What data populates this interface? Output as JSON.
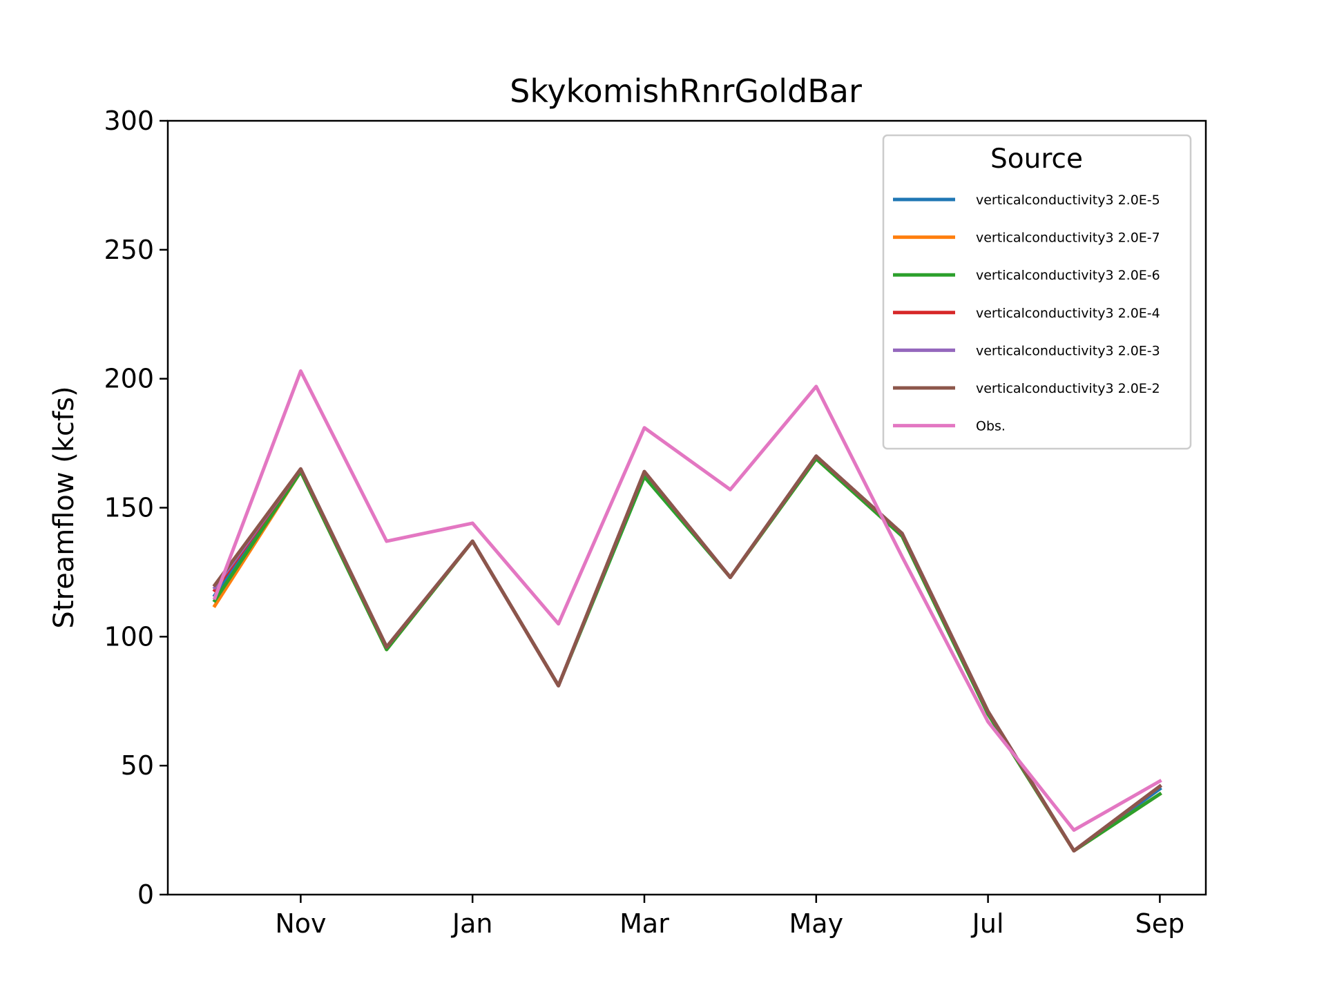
{
  "chart_data": {
    "type": "line",
    "title": "SkykomishRnrGoldBar",
    "xlabel": "",
    "ylabel": "Streamflow (kcfs)",
    "ylim": [
      0,
      300
    ],
    "y_ticks": [
      0,
      50,
      100,
      150,
      200,
      250,
      300
    ],
    "x_tick_labels": [
      "Nov",
      "Jan",
      "Mar",
      "May",
      "Jul",
      "Sep"
    ],
    "x": [
      "Oct",
      "Nov",
      "Dec",
      "Jan",
      "Feb",
      "Mar",
      "Apr",
      "May",
      "Jun",
      "Jul",
      "Aug",
      "Sep"
    ],
    "grid": false,
    "legend": {
      "title": "Source",
      "placement": "top-right"
    },
    "series": [
      {
        "name": "verticalconductivity3 2.0E-5",
        "color": "#1f77b4",
        "values": [
          116,
          165,
          96,
          137,
          81,
          163,
          123,
          170,
          140,
          71,
          17,
          41
        ]
      },
      {
        "name": "verticalconductivity3 2.0E-7",
        "color": "#ff7f0e",
        "values": [
          112,
          164,
          95,
          137,
          81,
          163,
          123,
          169,
          139,
          70,
          17,
          39
        ]
      },
      {
        "name": "verticalconductivity3 2.0E-6",
        "color": "#2ca02c",
        "values": [
          114,
          164,
          95,
          137,
          81,
          162,
          123,
          169,
          139,
          70,
          17,
          39
        ]
      },
      {
        "name": "verticalconductivity3 2.0E-4",
        "color": "#d62728",
        "values": [
          118,
          165,
          96,
          137,
          81,
          164,
          123,
          170,
          140,
          71,
          17,
          42
        ]
      },
      {
        "name": "verticalconductivity3 2.0E-3",
        "color": "#9467bd",
        "values": [
          119,
          165,
          96,
          137,
          81,
          164,
          123,
          170,
          140,
          71,
          17,
          42
        ]
      },
      {
        "name": "verticalconductivity3 2.0E-2",
        "color": "#8c564b",
        "values": [
          120,
          165,
          96,
          137,
          81,
          164,
          123,
          170,
          140,
          71,
          17,
          42
        ]
      },
      {
        "name": "Obs.",
        "color": "#e377c2",
        "values": [
          115,
          203,
          137,
          144,
          105,
          181,
          157,
          197,
          131,
          67,
          25,
          44
        ]
      }
    ]
  }
}
